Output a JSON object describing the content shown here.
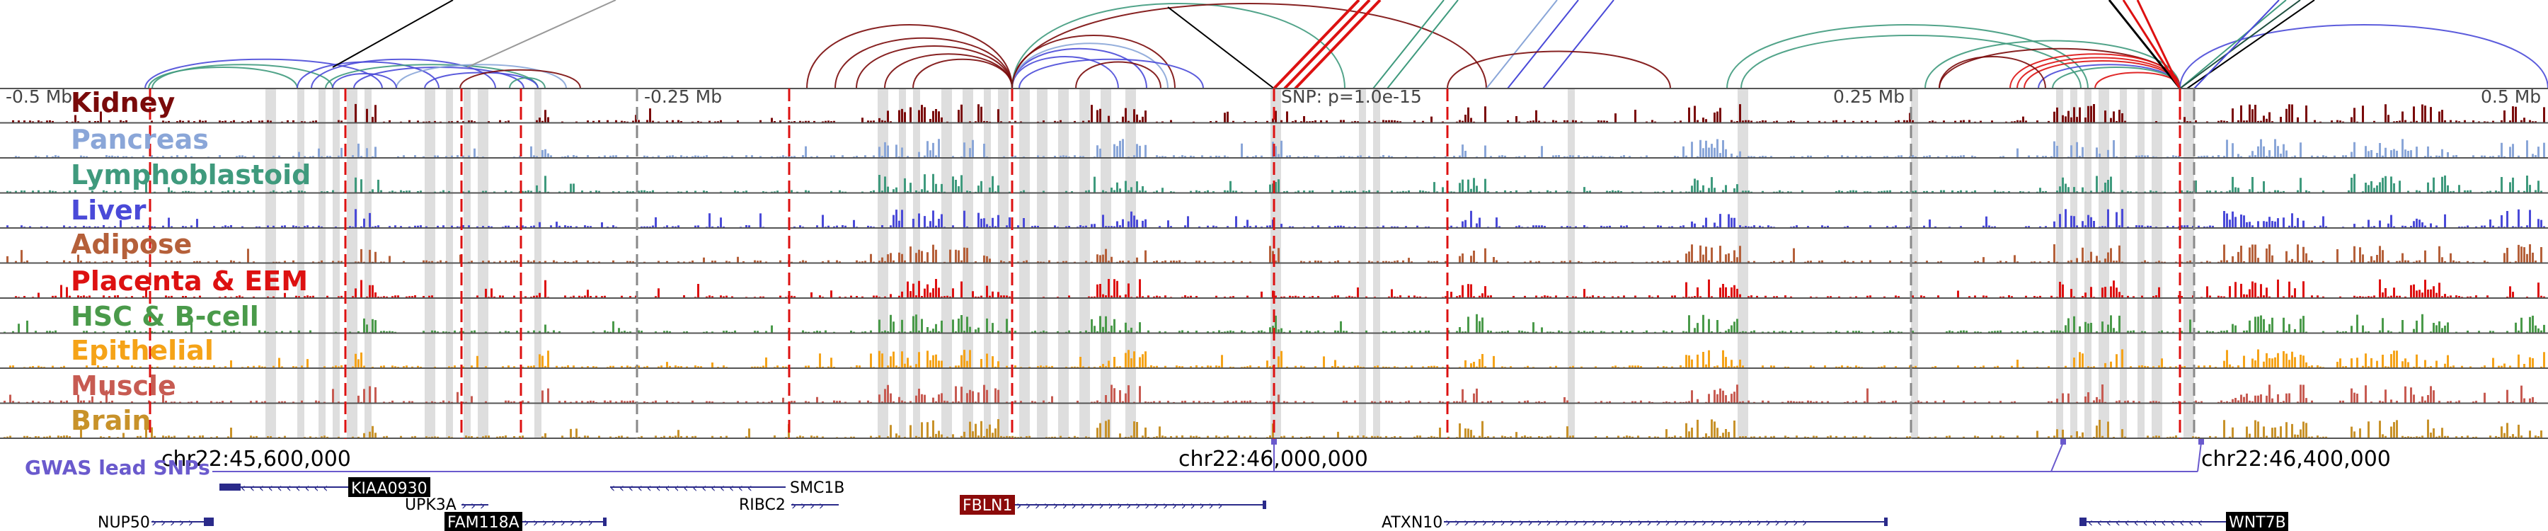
{
  "scale": {
    "left_label": "-0.5 Mb",
    "mid_left_label": "-0.25 Mb",
    "center_label": "SNP: p=1.0e-15",
    "mid_right_label": "0.25 Mb",
    "right_label": "0.5 Mb"
  },
  "tracks": [
    {
      "name": "Kidney",
      "color": "#7a0a0a"
    },
    {
      "name": "Pancreas",
      "color": "#8aa6d8"
    },
    {
      "name": "Lymphoblastoid",
      "color": "#3f9a7d"
    },
    {
      "name": "Liver",
      "color": "#4a4ad8"
    },
    {
      "name": "Adipose",
      "color": "#b5603a"
    },
    {
      "name": "Placenta & EEM",
      "color": "#dd1111"
    },
    {
      "name": "HSC & B-cell",
      "color": "#4a9a4a"
    },
    {
      "name": "Epithelial",
      "color": "#f5a318"
    },
    {
      "name": "Muscle",
      "color": "#c75b52"
    },
    {
      "name": "Brain",
      "color": "#c8922a"
    }
  ],
  "coords": [
    "chr22:45,600,000",
    "chr22:46,000,000",
    "chr22:46,400,000"
  ],
  "gwas_label": "GWAS lead SNPs",
  "genes": {
    "kiaa0930": "KIAA0930",
    "smc1b": "SMC1B",
    "upk3a": "UPK3A",
    "ribc2": "RIBC2",
    "fbln1": "FBLN1",
    "nup50": "NUP50",
    "fam118a": "FAM118A",
    "atxn10": "ATXN10",
    "wnt7b": "WNT7B"
  },
  "colors": {
    "gene": "#2a2a8a",
    "gwas": "#6a5acd",
    "highlight_line": "#dd1111",
    "shade": "#dedede"
  }
}
